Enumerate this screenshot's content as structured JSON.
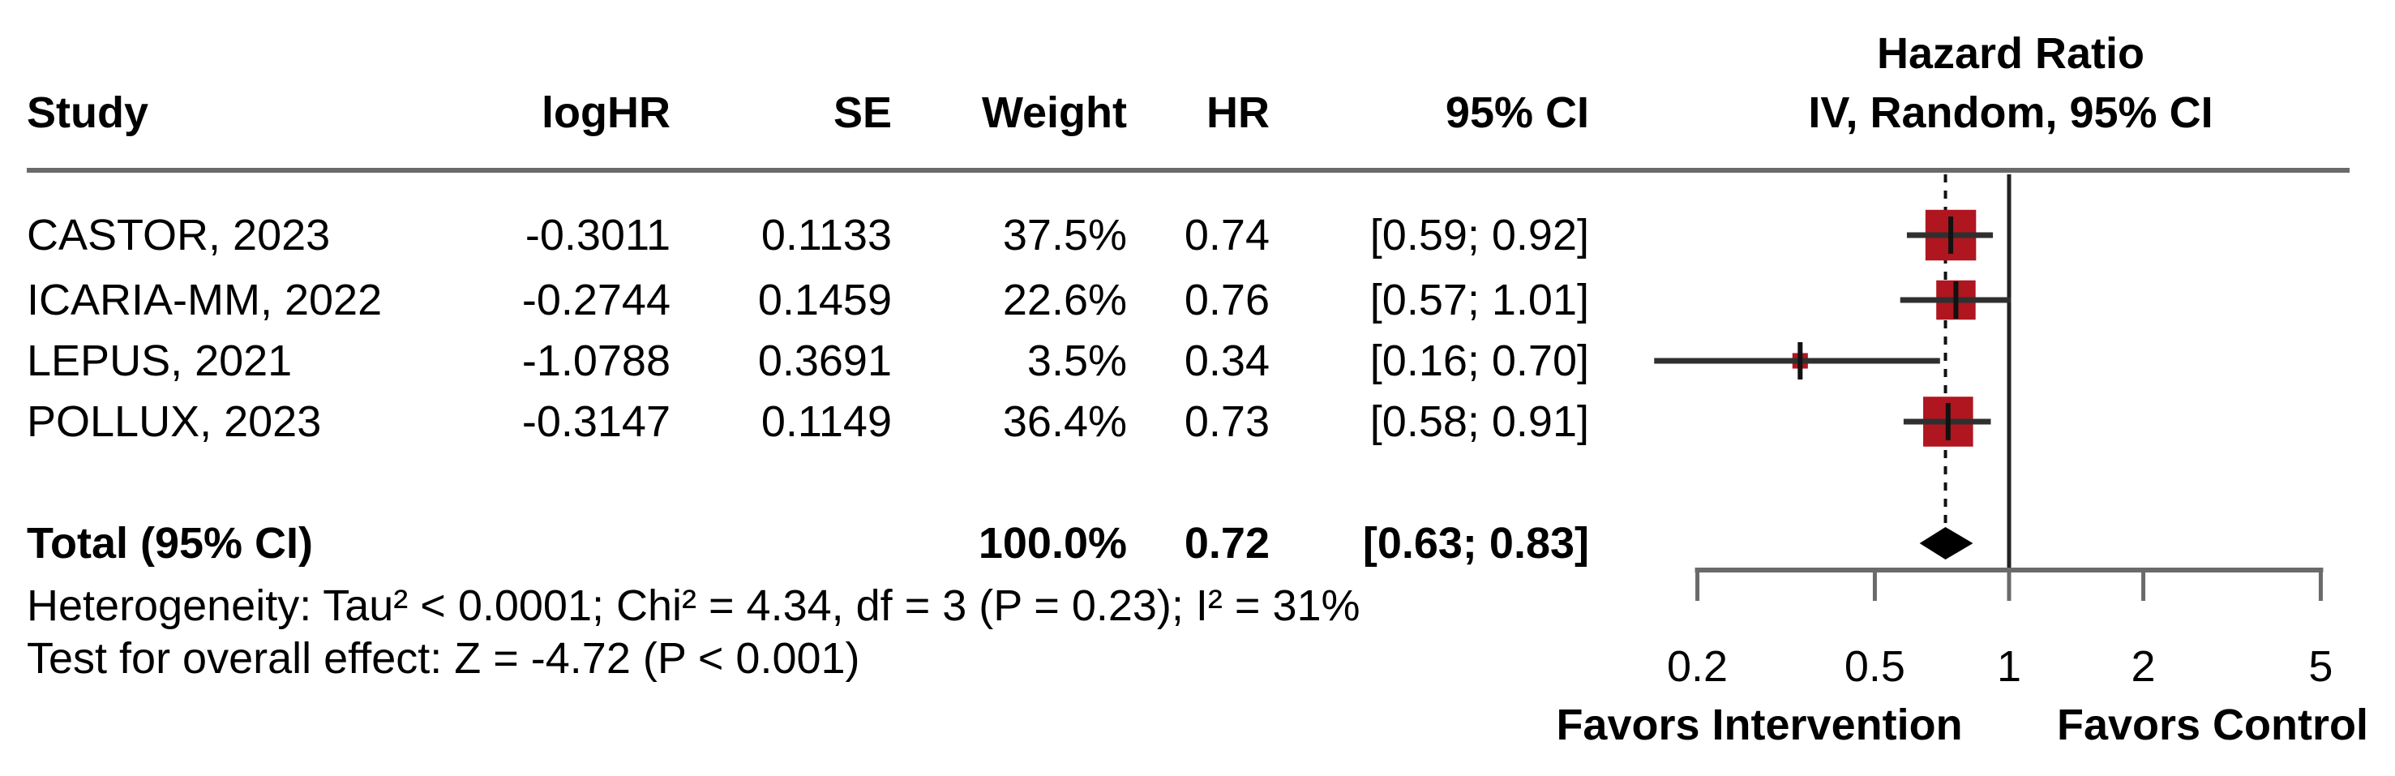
{
  "table": {
    "headers": {
      "study": "Study",
      "loghr": "logHR",
      "se": "SE",
      "weight": "Weight",
      "hr": "HR",
      "ci": "95% CI"
    },
    "plot_header_line1": "Hazard Ratio",
    "plot_header_line2": "IV, Random, 95% CI",
    "rows": [
      {
        "study": "CASTOR, 2023",
        "loghr": "-0.3011",
        "se": "0.1133",
        "weight": "37.5%",
        "hr": "0.74",
        "ci": "[0.59; 0.92]"
      },
      {
        "study": "ICARIA-MM, 2022",
        "loghr": "-0.2744",
        "se": "0.1459",
        "weight": "22.6%",
        "hr": "0.76",
        "ci": "[0.57; 1.01]"
      },
      {
        "study": "LEPUS, 2021",
        "loghr": "-1.0788",
        "se": "0.3691",
        "weight": "3.5%",
        "hr": "0.34",
        "ci": "[0.16; 0.70]"
      },
      {
        "study": "POLLUX, 2023",
        "loghr": "-0.3147",
        "se": "0.1149",
        "weight": "36.4%",
        "hr": "0.73",
        "ci": "[0.58; 0.91]"
      }
    ],
    "total": {
      "label": "Total (95% CI)",
      "weight": "100.0%",
      "hr": "0.72",
      "ci": "[0.63; 0.83]"
    }
  },
  "footnotes": {
    "heterogeneity": "Heterogeneity: Tau² < 0.0001; Chi² = 4.34, df = 3 (P = 0.23); I² = 31%",
    "overall_effect": "Test for overall effect: Z = -4.72 (P < 0.001)"
  },
  "chart_data": {
    "type": "forest",
    "scale": "log",
    "effect_measure": "Hazard Ratio",
    "model": "IV, Random, 95% CI",
    "studies": [
      {
        "name": "CASTOR, 2023",
        "hr": 0.74,
        "ci_low": 0.59,
        "ci_high": 0.92,
        "weight_pct": 37.5
      },
      {
        "name": "ICARIA-MM, 2022",
        "hr": 0.76,
        "ci_low": 0.57,
        "ci_high": 1.01,
        "weight_pct": 22.6
      },
      {
        "name": "LEPUS, 2021",
        "hr": 0.34,
        "ci_low": 0.16,
        "ci_high": 0.7,
        "weight_pct": 3.5
      },
      {
        "name": "POLLUX, 2023",
        "hr": 0.73,
        "ci_low": 0.58,
        "ci_high": 0.91,
        "weight_pct": 36.4
      }
    ],
    "total": {
      "hr": 0.72,
      "ci_low": 0.63,
      "ci_high": 0.83,
      "weight_pct": 100.0
    },
    "ref_line": 1,
    "axis_ticks": [
      "0.2",
      "0.5",
      "1",
      "2",
      "5"
    ],
    "axis_range": [
      0.2,
      5
    ],
    "xlabel_left": "Favors Intervention",
    "xlabel_right": "Favors Control",
    "colors": {
      "square": "#b0161f",
      "diamond": "#000000",
      "ci_line": "#2f2f2f",
      "marker_tick": "#111111",
      "axis": "#6a6a6a",
      "ref_solid": "#222222",
      "ref_dashed": "#111111"
    }
  }
}
